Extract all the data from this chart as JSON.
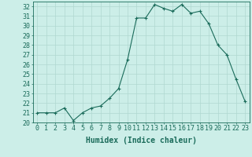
{
  "x": [
    0,
    1,
    2,
    3,
    4,
    5,
    6,
    7,
    8,
    9,
    10,
    11,
    12,
    13,
    14,
    15,
    16,
    17,
    18,
    19,
    20,
    21,
    22,
    23
  ],
  "y": [
    21.0,
    21.0,
    21.0,
    21.5,
    20.2,
    21.0,
    21.5,
    21.7,
    22.5,
    23.5,
    26.5,
    30.8,
    30.8,
    32.2,
    31.8,
    31.5,
    32.2,
    31.3,
    31.5,
    30.2,
    28.0,
    27.0,
    24.5,
    22.2
  ],
  "line_color": "#1a6b5a",
  "marker": "+",
  "marker_size": 3,
  "marker_color": "#1a6b5a",
  "bg_color": "#cceee8",
  "grid_color": "#b0d8d0",
  "axis_color": "#1a6b5a",
  "xlabel": "Humidex (Indice chaleur)",
  "xlabel_fontsize": 7,
  "tick_fontsize": 6,
  "ylim": [
    20,
    32.5
  ],
  "xlim": [
    -0.5,
    23.5
  ],
  "yticks": [
    20,
    21,
    22,
    23,
    24,
    25,
    26,
    27,
    28,
    29,
    30,
    31,
    32
  ],
  "xticks": [
    0,
    1,
    2,
    3,
    4,
    5,
    6,
    7,
    8,
    9,
    10,
    11,
    12,
    13,
    14,
    15,
    16,
    17,
    18,
    19,
    20,
    21,
    22,
    23
  ],
  "line_width": 0.8
}
